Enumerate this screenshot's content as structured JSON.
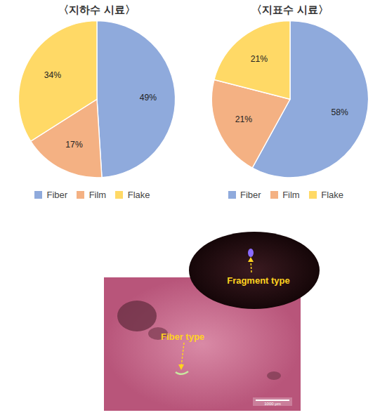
{
  "chart_data": [
    {
      "type": "pie",
      "title": "〈지하수 시료〉",
      "categories": [
        "Fiber",
        "Film",
        "Flake"
      ],
      "values": [
        49,
        17,
        34
      ],
      "value_labels": [
        "49%",
        "17%",
        "34%"
      ],
      "colors": [
        "#8faadc",
        "#f4b183",
        "#ffd966"
      ],
      "data_labels": true,
      "legend": "bottom"
    },
    {
      "type": "pie",
      "title": "〈지표수 시료〉",
      "categories": [
        "Fiber",
        "Film",
        "Flake"
      ],
      "values": [
        58,
        21,
        21
      ],
      "value_labels": [
        "58%",
        "21%",
        "21%"
      ],
      "colors": [
        "#8faadc",
        "#f4b183",
        "#ffd966"
      ],
      "data_labels": true,
      "legend": "bottom"
    }
  ],
  "image": {
    "labels": [
      "Fragment type",
      "Fiber type"
    ],
    "scale_bar": "1000 μm"
  }
}
